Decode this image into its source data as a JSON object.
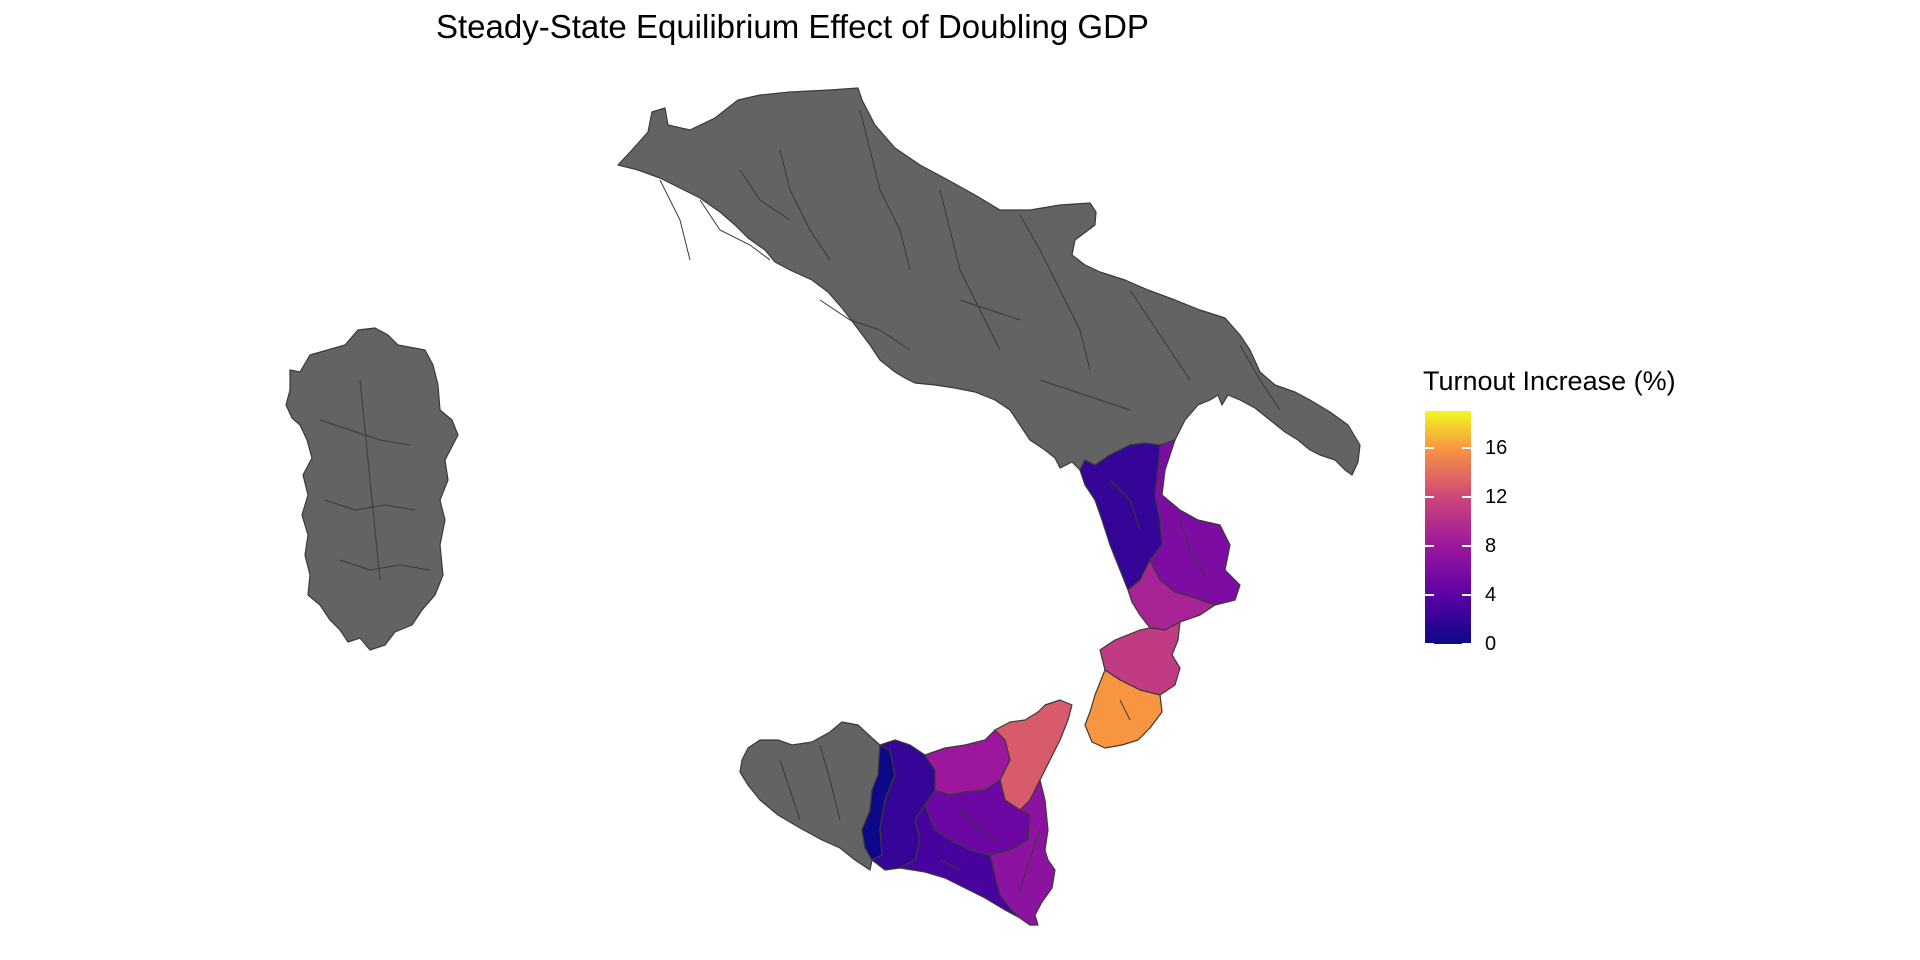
{
  "title": "Steady-State Equilibrium Effect of Doubling GDP",
  "legend": {
    "title": "Turnout Increase (%)",
    "scale_min": 0,
    "scale_max": 19,
    "ticks": [
      {
        "value": 0,
        "label": "0"
      },
      {
        "value": 4,
        "label": "4"
      },
      {
        "value": 8,
        "label": "8"
      },
      {
        "value": 12,
        "label": "12"
      },
      {
        "value": 16,
        "label": "16"
      }
    ]
  },
  "palette": {
    "no_data": "#636363",
    "border": "#3a3a3a",
    "scale_0": "#0d0887",
    "scale_4": "#5c01a6",
    "scale_8": "#9c179e",
    "scale_12": "#cc4778",
    "scale_16": "#f89540",
    "scale_19": "#f0f921"
  },
  "regions": [
    {
      "id": "sardinia",
      "group": "no-data"
    },
    {
      "id": "mainland-south",
      "group": "no-data"
    },
    {
      "id": "western-sicily",
      "group": "no-data"
    },
    {
      "id": "northern-calabria-west",
      "value": 2
    },
    {
      "id": "northern-calabria-east",
      "value": 6
    },
    {
      "id": "central-calabria-north",
      "value": 9
    },
    {
      "id": "central-calabria",
      "value": 11
    },
    {
      "id": "southern-calabria",
      "value": 16
    },
    {
      "id": "sicily-far-west",
      "value": 0
    },
    {
      "id": "sicily-west-central",
      "value": 2
    },
    {
      "id": "sicily-north-central",
      "value": 8
    },
    {
      "id": "sicily-northeast",
      "value": 13
    },
    {
      "id": "sicily-central",
      "value": 5
    },
    {
      "id": "sicily-south",
      "value": 3
    },
    {
      "id": "sicily-east",
      "value": 7
    }
  ]
}
